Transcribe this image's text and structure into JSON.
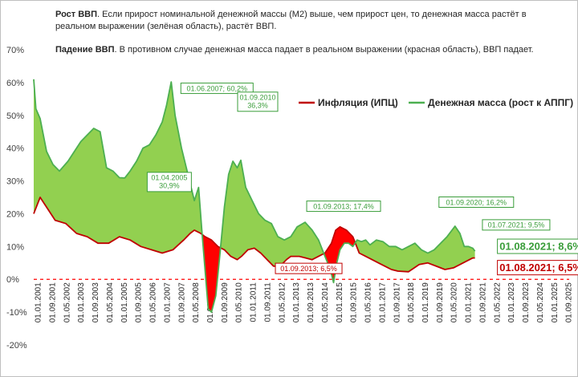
{
  "notes": {
    "growth_title": "Рост ВВП",
    "growth_text": ". Если прирост номинальной денежной массы (М2) выше, чем прирост цен,  то денежная масса растёт в реальном выражении (зелёная область), растёт ВВП.",
    "fall_title": "Падение ВВП",
    "fall_text": ". В противном случае денежная масса падает в реальном выражении (красная область), ВВП падает."
  },
  "colors": {
    "inflation": "#c00000",
    "money": "#4caf50",
    "fill_green": "#92d050",
    "fill_red": "#ff0000",
    "zero_line": "#ff0000"
  },
  "chart_data": {
    "type": "area",
    "title": "",
    "xlabel": "",
    "ylabel": "",
    "ylim": [
      -20,
      70
    ],
    "yticks": [
      -20,
      -10,
      0,
      10,
      20,
      30,
      40,
      50,
      60,
      70
    ],
    "ytick_labels": [
      "-20%",
      "-10%",
      "0%",
      "10%",
      "20%",
      "30%",
      "40%",
      "50%",
      "60%",
      "70%"
    ],
    "xlim": [
      2001.0,
      2026.0
    ],
    "xtick_labels": [
      "01.01.2001",
      "01.09.2001",
      "01.05.2002",
      "01.01.2003",
      "01.09.2003",
      "01.05.2004",
      "01.01.2005",
      "01.09.2005",
      "01.05.2006",
      "01.01.2007",
      "01.09.2007",
      "01.05.2008",
      "01.01.2009",
      "01.09.2009",
      "01.05.2010",
      "01.01.2011",
      "01.09.2011",
      "01.05.2012",
      "01.01.2013",
      "01.09.2013",
      "01.05.2014",
      "01.01.2015",
      "01.09.2015",
      "01.05.2016",
      "01.01.2017",
      "01.09.2017",
      "01.05.2018",
      "01.01.2019",
      "01.09.2019",
      "01.05.2020",
      "01.01.2021",
      "01.09.2021",
      "01.05.2022",
      "01.01.2023",
      "01.09.2023",
      "01.05.2024",
      "01.01.2025",
      "01.09.2025"
    ],
    "legend": {
      "position": "top-right",
      "entries": [
        "Инфляция (ИПЦ)",
        "Денежная масса (рост к АППГ)"
      ]
    },
    "series": [
      {
        "name": "Инфляция (ИПЦ)",
        "x": [
          2001.0,
          2001.3,
          2001.7,
          2002.0,
          2002.5,
          2003.0,
          2003.5,
          2004.0,
          2004.5,
          2005.0,
          2005.5,
          2006.0,
          2006.5,
          2007.0,
          2007.5,
          2008.0,
          2008.3,
          2008.5,
          2008.8,
          2009.0,
          2009.3,
          2009.6,
          2009.9,
          2010.2,
          2010.5,
          2010.7,
          2011.0,
          2011.3,
          2011.6,
          2011.9,
          2012.2,
          2012.5,
          2012.8,
          2013.0,
          2013.4,
          2013.7,
          2014.0,
          2014.3,
          2014.6,
          2014.9,
          2015.1,
          2015.3,
          2015.6,
          2015.9,
          2016.2,
          2016.5,
          2016.8,
          2017.1,
          2017.4,
          2017.7,
          2018.0,
          2018.5,
          2019.0,
          2019.4,
          2019.8,
          2020.2,
          2020.6,
          2020.9,
          2021.2,
          2021.5,
          2021.6
        ],
        "values": [
          20,
          25,
          21,
          18,
          17,
          14,
          13,
          11,
          11,
          13,
          12,
          10,
          9,
          8,
          9,
          12,
          14,
          15,
          14,
          13,
          12,
          10,
          9,
          7,
          6,
          7,
          9,
          9.5,
          8,
          6,
          4,
          4,
          6,
          7,
          7,
          6.5,
          6,
          7,
          8,
          11,
          15,
          16,
          15,
          13,
          8,
          7,
          6,
          5,
          4,
          3,
          2.5,
          2.3,
          4.5,
          5,
          4,
          3,
          3.5,
          4.5,
          5.5,
          6.5,
          6.5
        ]
      },
      {
        "name": "Денежная масса (рост к АППГ)",
        "x": [
          2001.0,
          2001.1,
          2001.3,
          2001.6,
          2001.9,
          2002.2,
          2002.6,
          2002.9,
          2003.2,
          2003.5,
          2003.8,
          2004.1,
          2004.4,
          2004.7,
          2005.0,
          2005.25,
          2005.5,
          2005.8,
          2006.1,
          2006.4,
          2006.7,
          2007.0,
          2007.2,
          2007.42,
          2007.6,
          2007.9,
          2008.2,
          2008.5,
          2008.7,
          2008.85,
          2009.0,
          2009.15,
          2009.3,
          2009.5,
          2009.7,
          2009.9,
          2010.1,
          2010.3,
          2010.5,
          2010.67,
          2010.9,
          2011.2,
          2011.5,
          2011.8,
          2012.1,
          2012.4,
          2012.7,
          2013.0,
          2013.3,
          2013.67,
          2014.0,
          2014.3,
          2014.6,
          2014.85,
          2015.0,
          2015.15,
          2015.3,
          2015.5,
          2015.7,
          2015.9,
          2016.1,
          2016.3,
          2016.5,
          2016.7,
          2017.0,
          2017.3,
          2017.6,
          2017.9,
          2018.2,
          2018.5,
          2018.8,
          2019.1,
          2019.4,
          2019.7,
          2020.0,
          2020.3,
          2020.67,
          2020.9,
          2021.1,
          2021.3,
          2021.5,
          2021.6
        ],
        "values": [
          61,
          52,
          49,
          39,
          35,
          33,
          36,
          39,
          42,
          44,
          46,
          45,
          34,
          33,
          31,
          30.9,
          33,
          36,
          40,
          41,
          44,
          48,
          53,
          60.2,
          50,
          40,
          32,
          24,
          28,
          15,
          3,
          -9,
          -10,
          -5,
          8,
          22,
          32,
          36,
          34,
          36.3,
          28,
          24,
          20,
          18,
          17,
          13,
          12,
          13,
          16,
          17.4,
          15,
          12,
          7,
          3,
          -1,
          5,
          9,
          11,
          11,
          10,
          12,
          11.5,
          12,
          10.5,
          12,
          11.5,
          10,
          10,
          9,
          10,
          11,
          9,
          8,
          9,
          11,
          13,
          16.2,
          14,
          10,
          10,
          9.5,
          8.6
        ]
      }
    ],
    "annotations": [
      {
        "label": "01.06.2007; 60,2%",
        "x": 2007.42,
        "y": 60.2,
        "color": "green"
      },
      {
        "label": "01.04.2005\n30,9%",
        "x": 2005.25,
        "y": 30.9,
        "color": "green"
      },
      {
        "label": "01.09.2010\n36,3%",
        "x": 2010.67,
        "y": 36.3,
        "color": "green"
      },
      {
        "label": "01.09.2013; 17,4%",
        "x": 2013.67,
        "y": 17.4,
        "color": "green"
      },
      {
        "label": "01.09.2013; 6,5%",
        "x": 2013.67,
        "y": 6.5,
        "color": "red"
      },
      {
        "label": "01.09.2020; 16,2%",
        "x": 2020.67,
        "y": 16.2,
        "color": "green"
      },
      {
        "label": "01.07.2021; 9,5%",
        "x": 2021.5,
        "y": 9.5,
        "color": "green"
      },
      {
        "label": "01.08.2021; 8,6%",
        "x": 2021.6,
        "y": 8.6,
        "color": "green"
      },
      {
        "label": "01.08.2021; 6,5%",
        "x": 2021.6,
        "y": 6.5,
        "color": "red"
      }
    ]
  }
}
